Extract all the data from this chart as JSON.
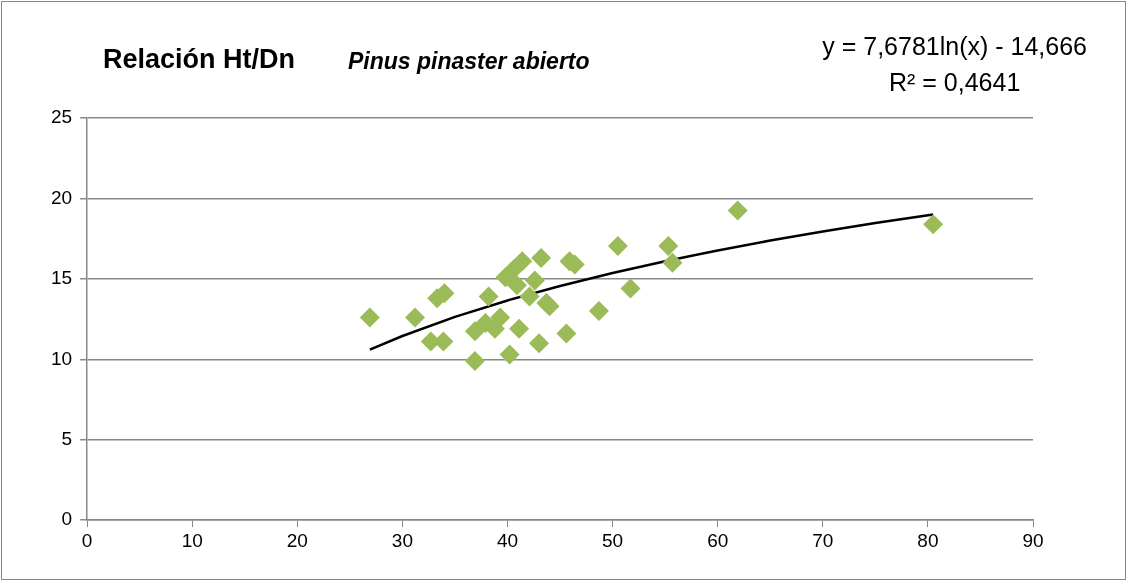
{
  "chart_data": {
    "type": "scatter",
    "title": "Relación Ht/Dn",
    "subtitle": "Pinus pinaster abierto",
    "annotations": [
      "y = 7,6781ln(x) - 14,666",
      "R² = 0,4641"
    ],
    "series": [
      {
        "color": "#9bbb59",
        "marker": "diamond",
        "x": [
          26.9,
          31.2,
          32.7,
          33.9,
          33.3,
          34.0,
          36.9,
          36.9,
          38.2,
          37.9,
          38.8,
          39.3,
          40.2,
          41.1,
          39.8,
          40.6,
          41.4,
          40.9,
          42.1,
          42.6,
          43.2,
          43.0,
          43.7,
          44.0,
          45.6,
          45.9,
          46.4,
          48.7,
          50.5,
          51.7,
          55.3,
          55.7,
          61.9,
          80.5
        ],
        "values": [
          12.6,
          12.6,
          11.1,
          11.1,
          13.8,
          14.1,
          11.75,
          9.9,
          13.9,
          12.25,
          11.9,
          12.6,
          10.3,
          11.9,
          15.1,
          15.6,
          16.1,
          14.6,
          13.9,
          14.9,
          16.3,
          11.0,
          13.5,
          13.3,
          11.6,
          16.1,
          15.9,
          13.0,
          17.05,
          14.4,
          17.05,
          16.0,
          19.25,
          18.4
        ]
      },
      {
        "type": "line",
        "color": "#000000",
        "marker": "none",
        "x": [
          26.9,
          30,
          35,
          40,
          45,
          50,
          55,
          60,
          65,
          70,
          75,
          80.5
        ],
        "values": [
          10.6,
          11.45,
          12.64,
          13.66,
          14.56,
          15.37,
          16.1,
          16.77,
          17.38,
          17.95,
          18.48,
          19.0
        ]
      }
    ],
    "xlim": [
      0,
      90
    ],
    "xticks": [
      0,
      10,
      20,
      30,
      40,
      50,
      60,
      70,
      80,
      90
    ],
    "ylim": [
      0,
      25
    ],
    "yticks": [
      0,
      5,
      10,
      15,
      20,
      25
    ],
    "grid": "y",
    "legend": false
  }
}
